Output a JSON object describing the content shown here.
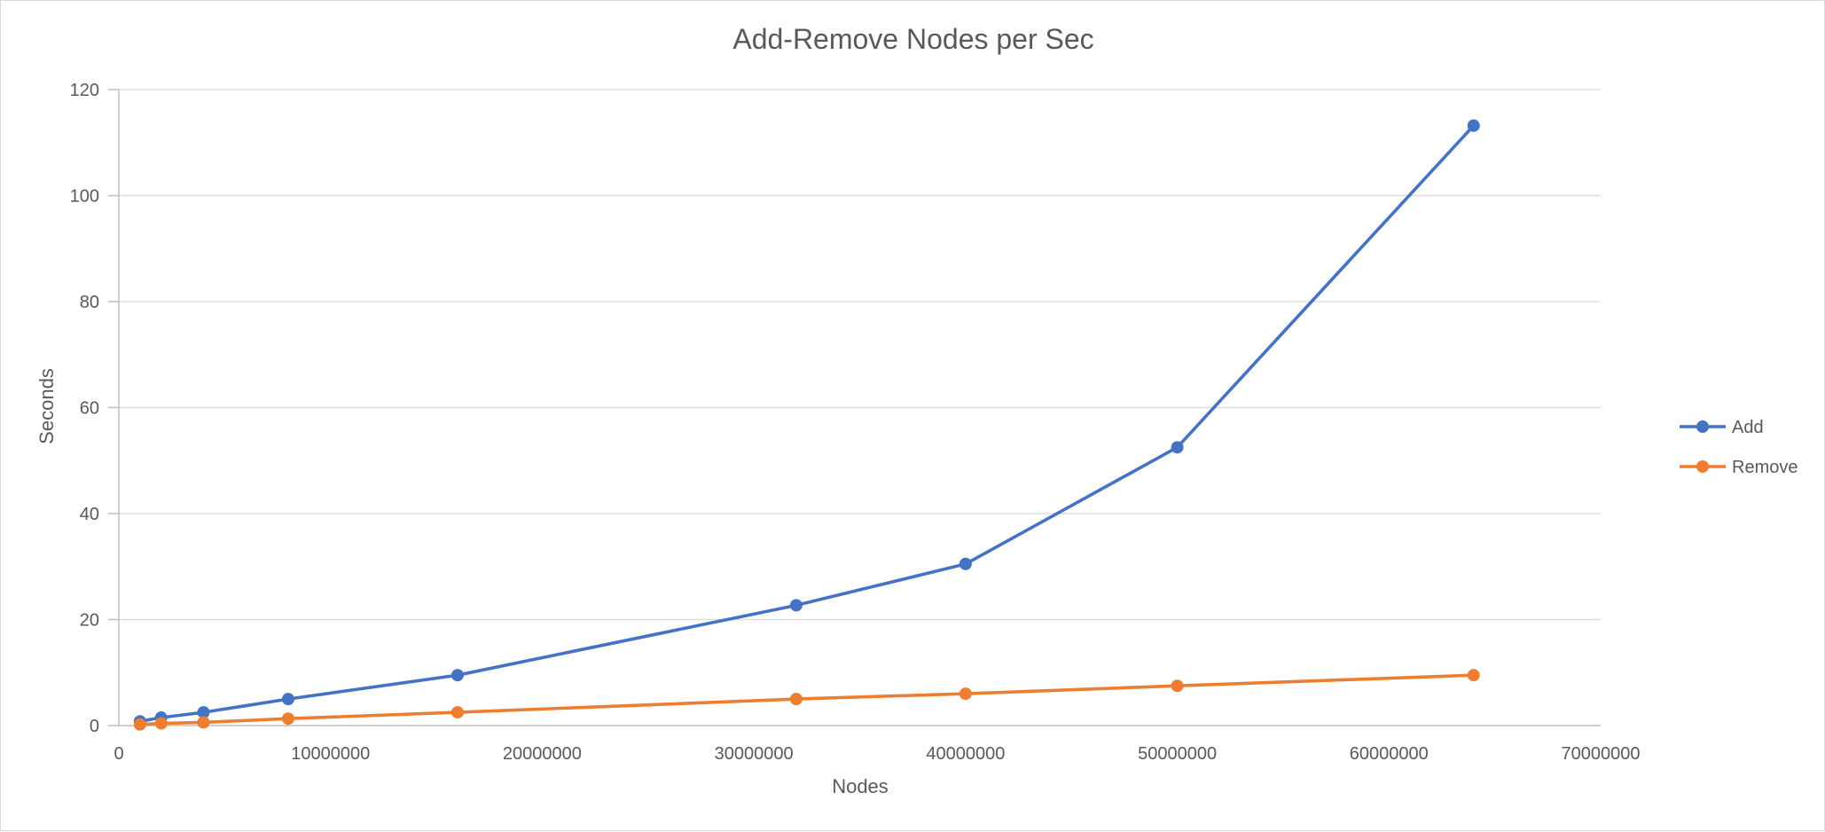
{
  "chart_data": {
    "type": "line",
    "title": "Add-Remove Nodes per Sec",
    "xlabel": "Nodes",
    "ylabel": "Seconds",
    "xlim": [
      0,
      70000000
    ],
    "ylim": [
      0,
      120
    ],
    "x_ticks": [
      "0",
      "10000000",
      "20000000",
      "30000000",
      "40000000",
      "50000000",
      "60000000",
      "70000000"
    ],
    "y_ticks": [
      "0",
      "20",
      "40",
      "60",
      "80",
      "100",
      "120"
    ],
    "grid": true,
    "legend_position": "right",
    "x": [
      1000000,
      2000000,
      4000000,
      8000000,
      16000000,
      32000000,
      40000000,
      50000000,
      64000000
    ],
    "series": [
      {
        "name": "Add",
        "color": "#4472c4",
        "values": [
          0.8,
          1.5,
          2.5,
          5.0,
          9.5,
          22.7,
          30.5,
          52.5,
          113.2
        ]
      },
      {
        "name": "Remove",
        "color": "#ed7d31",
        "values": [
          0.2,
          0.4,
          0.6,
          1.3,
          2.5,
          5.0,
          6.0,
          7.5,
          9.5
        ]
      }
    ]
  }
}
